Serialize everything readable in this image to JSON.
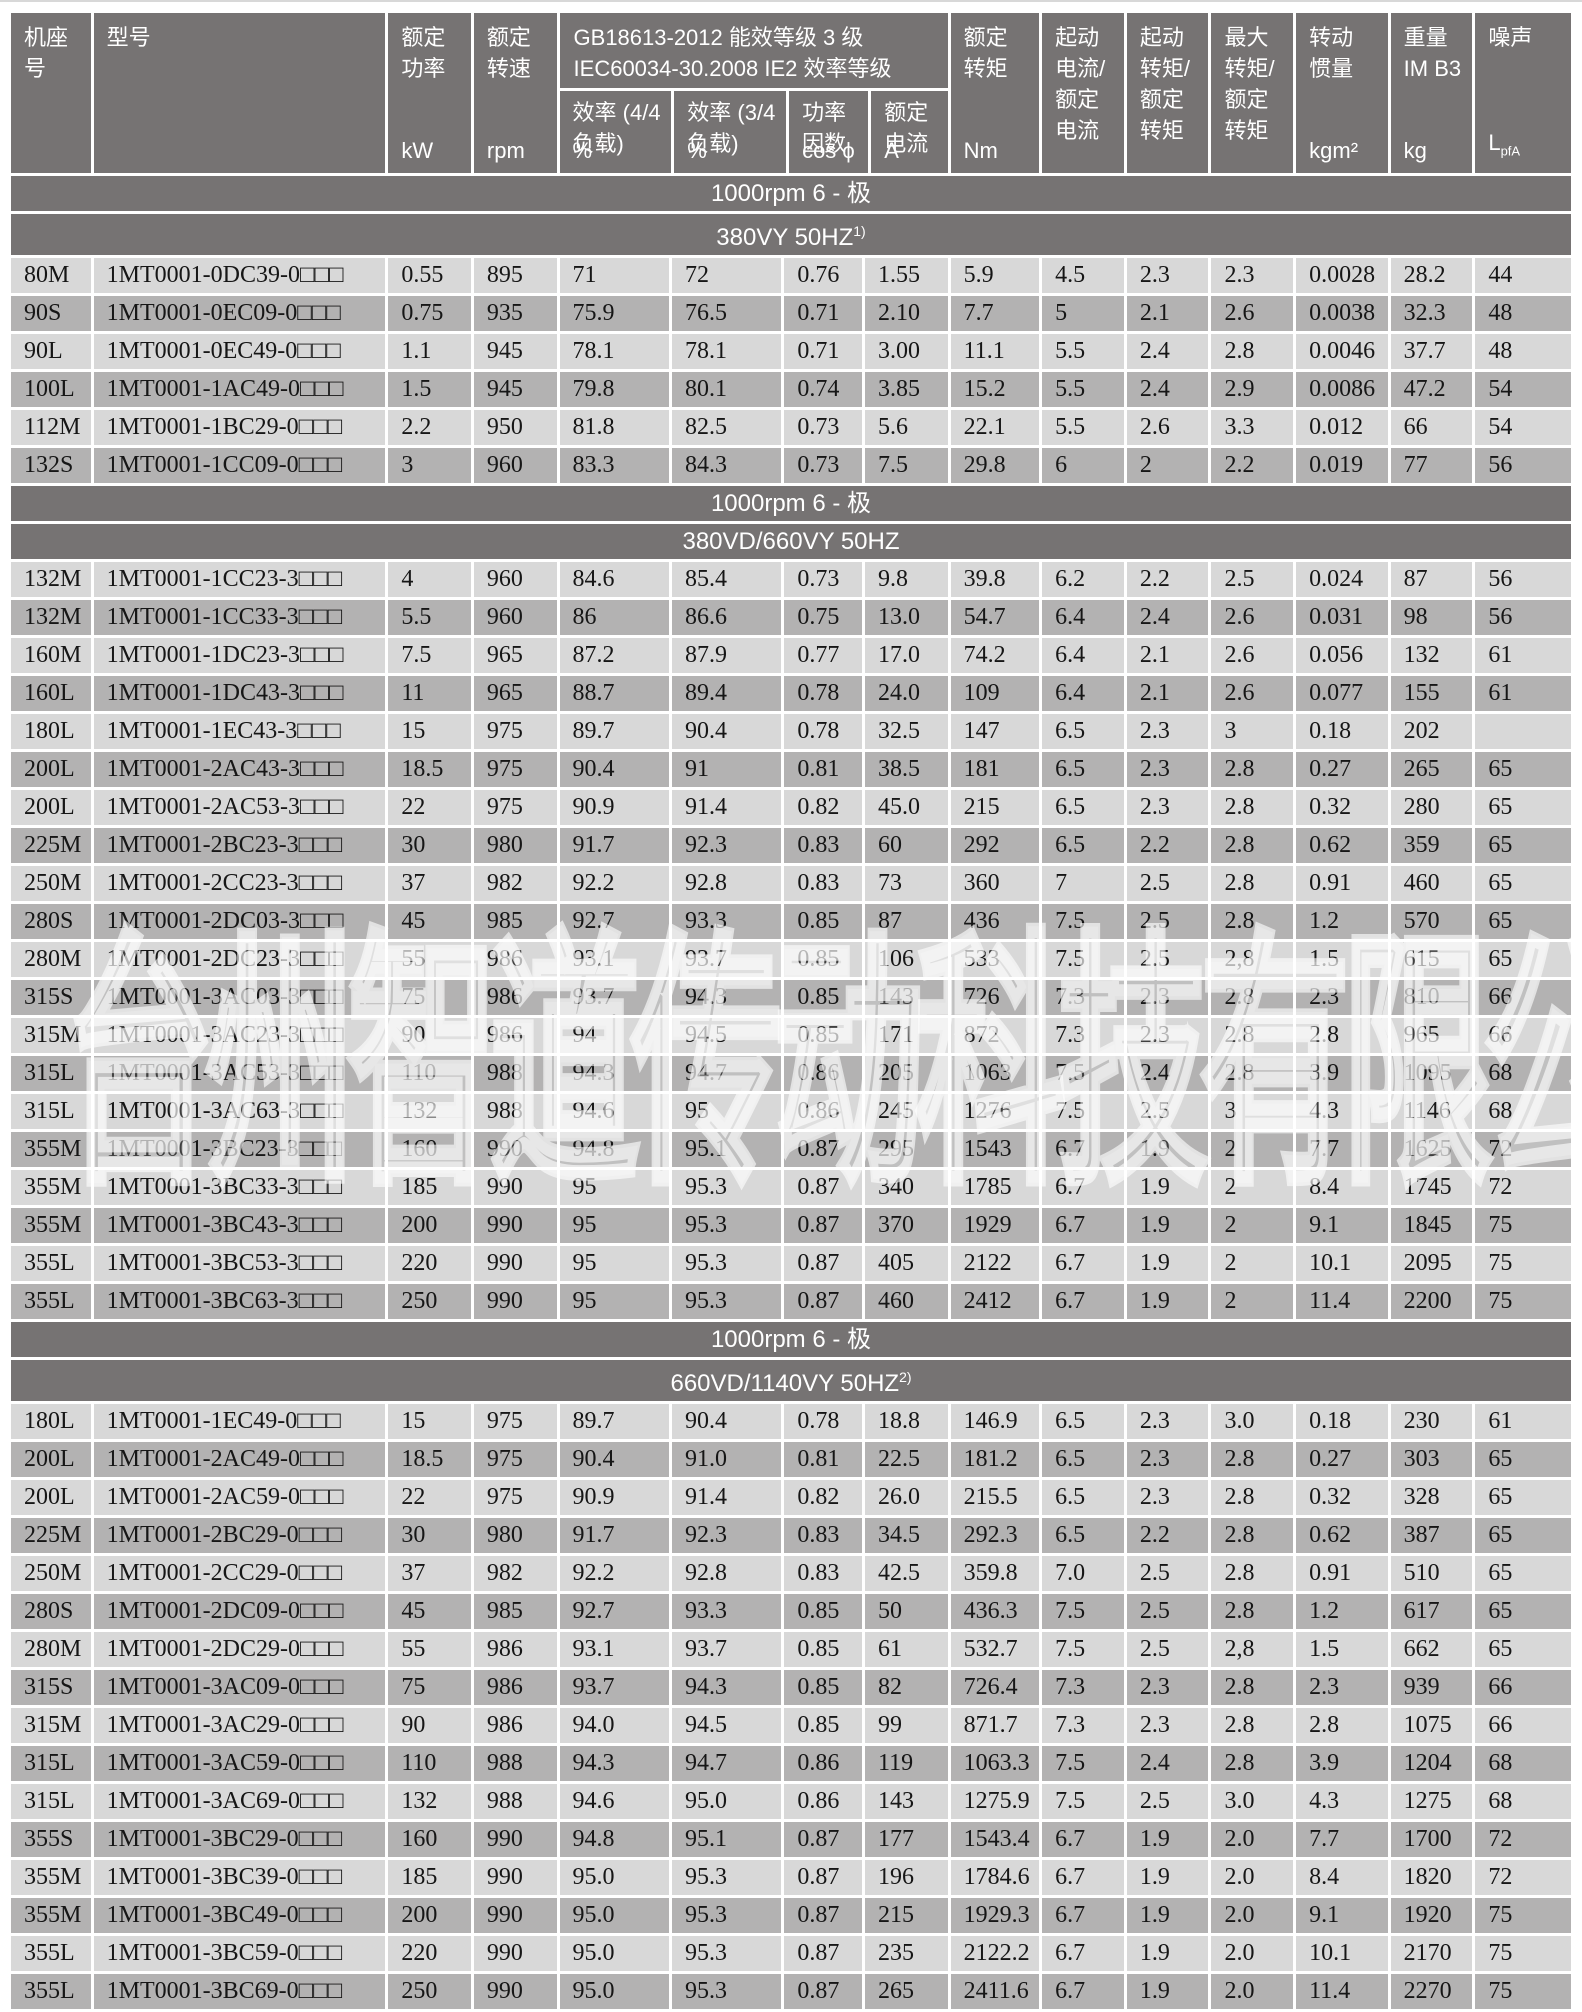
{
  "watermark": "台州智道传动科技有限公司",
  "header": {
    "frame": "机座号",
    "model": "型号",
    "power_l1": "额定",
    "power_l2": "功率",
    "power_unit": "kW",
    "speed_l1": "额定",
    "speed_l2": "转速",
    "speed_unit": "rpm",
    "group_l1": "GB18613-2012 能效等级 3 级",
    "group_l2": "IEC60034-30.2008 IE2 效率等级",
    "eff44_l1": "效率 (4/4",
    "eff44_l2": "负载)",
    "eff44_unit": "%",
    "eff34_l1": "效率 (3/4",
    "eff34_l2": "负载)",
    "eff34_unit": "%",
    "pf_l1": "功率",
    "pf_l2": "因数",
    "pf_unit": "cos ϕ",
    "current_l1": "额定",
    "current_l2": "电流",
    "current_unit": "A",
    "torque_l1": "额定",
    "torque_l2": "转矩",
    "torque_unit": "Nm",
    "istart_l1": "起动",
    "istart_l2": "电流/",
    "istart_l3": "额定",
    "istart_l4": "电流",
    "tstart_l1": "起动",
    "tstart_l2": "转矩/",
    "tstart_l3": "额定",
    "tstart_l4": "转矩",
    "tmax_l1": "最大",
    "tmax_l2": "转矩/",
    "tmax_l3": "额定",
    "tmax_l4": "转矩",
    "inertia_l1": "转动",
    "inertia_l2": "惯量",
    "inertia_unit": "kgm²",
    "weight_l1": "重量",
    "weight_l2": "IM B3",
    "weight_unit": "kg",
    "noise": "噪声",
    "noise_unit_main": "L",
    "noise_unit_sub": "pfA"
  },
  "colors": {
    "band": "#767373",
    "row_light": "#d8d8d8",
    "row_dark": "#b3b2b2",
    "header_text": "#ffffff",
    "data_text": "#161616"
  },
  "sections": [
    {
      "band1": "1000rpm  6 - 极",
      "band2": "380VY  50HZ",
      "band2_sup": "1)",
      "rows": [
        [
          "80M",
          "1MT0001-0DC39-0□□□",
          "0.55",
          "895",
          "71",
          "72",
          "0.76",
          "1.55",
          "5.9",
          "4.5",
          "2.3",
          "2.3",
          "0.0028",
          "28.2",
          "44"
        ],
        [
          "90S",
          "1MT0001-0EC09-0□□□",
          "0.75",
          "935",
          "75.9",
          "76.5",
          "0.71",
          "2.10",
          "7.7",
          "5",
          "2.1",
          "2.6",
          "0.0038",
          "32.3",
          "48"
        ],
        [
          "90L",
          "1MT0001-0EC49-0□□□",
          "1.1",
          "945",
          "78.1",
          "78.1",
          "0.71",
          "3.00",
          "11.1",
          "5.5",
          "2.4",
          "2.8",
          "0.0046",
          "37.7",
          "48"
        ],
        [
          "100L",
          "1MT0001-1AC49-0□□□",
          "1.5",
          "945",
          "79.8",
          "80.1",
          "0.74",
          "3.85",
          "15.2",
          "5.5",
          "2.4",
          "2.9",
          "0.0086",
          "47.2",
          "54"
        ],
        [
          "112M",
          "1MT0001-1BC29-0□□□",
          "2.2",
          "950",
          "81.8",
          "82.5",
          "0.73",
          "5.6",
          "22.1",
          "5.5",
          "2.6",
          "3.3",
          "0.012",
          "66",
          "54"
        ],
        [
          "132S",
          "1MT0001-1CC09-0□□□",
          "3",
          "960",
          "83.3",
          "84.3",
          "0.73",
          "7.5",
          "29.8",
          "6",
          "2",
          "2.2",
          "0.019",
          "77",
          "56"
        ]
      ]
    },
    {
      "band1": "1000rpm  6 - 极",
      "band2": "380VD/660VY  50HZ",
      "band2_sup": "",
      "rows": [
        [
          "132M",
          "1MT0001-1CC23-3□□□",
          "4",
          "960",
          "84.6",
          "85.4",
          "0.73",
          "9.8",
          "39.8",
          "6.2",
          "2.2",
          "2.5",
          "0.024",
          "87",
          "56"
        ],
        [
          "132M",
          "1MT0001-1CC33-3□□□",
          "5.5",
          "960",
          "86",
          "86.6",
          "0.75",
          "13.0",
          "54.7",
          "6.4",
          "2.4",
          "2.6",
          "0.031",
          "98",
          "56"
        ],
        [
          "160M",
          "1MT0001-1DC23-3□□□",
          "7.5",
          "965",
          "87.2",
          "87.9",
          "0.77",
          "17.0",
          "74.2",
          "6.4",
          "2.1",
          "2.6",
          "0.056",
          "132",
          "61"
        ],
        [
          "160L",
          "1MT0001-1DC43-3□□□",
          "11",
          "965",
          "88.7",
          "89.4",
          "0.78",
          "24.0",
          "109",
          "6.4",
          "2.1",
          "2.6",
          "0.077",
          "155",
          "61"
        ],
        [
          "180L",
          "1MT0001-1EC43-3□□□",
          "15",
          "975",
          "89.7",
          "90.4",
          "0.78",
          "32.5",
          "147",
          "6.5",
          "2.3",
          "3",
          "0.18",
          "202",
          ""
        ],
        [
          "200L",
          "1MT0001-2AC43-3□□□",
          "18.5",
          "975",
          "90.4",
          "91",
          "0.81",
          "38.5",
          "181",
          "6.5",
          "2.3",
          "2.8",
          "0.27",
          "265",
          "65"
        ],
        [
          "200L",
          "1MT0001-2AC53-3□□□",
          "22",
          "975",
          "90.9",
          "91.4",
          "0.82",
          "45.0",
          "215",
          "6.5",
          "2.3",
          "2.8",
          "0.32",
          "280",
          "65"
        ],
        [
          "225M",
          "1MT0001-2BC23-3□□□",
          "30",
          "980",
          "91.7",
          "92.3",
          "0.83",
          "60",
          "292",
          "6.5",
          "2.2",
          "2.8",
          "0.62",
          "359",
          "65"
        ],
        [
          "250M",
          "1MT0001-2CC23-3□□□",
          "37",
          "982",
          "92.2",
          "92.8",
          "0.83",
          "73",
          "360",
          "7",
          "2.5",
          "2.8",
          "0.91",
          "460",
          "65"
        ],
        [
          "280S",
          "1MT0001-2DC03-3□□□",
          "45",
          "985",
          "92.7",
          "93.3",
          "0.85",
          "87",
          "436",
          "7.5",
          "2.5",
          "2.8",
          "1.2",
          "570",
          "65"
        ],
        [
          "280M",
          "1MT0001-2DC23-3□□□",
          "55",
          "986",
          "93.1",
          "93.7",
          "0.85",
          "106",
          "533",
          "7.5",
          "2.5",
          "2,8",
          "1.5",
          "615",
          "65"
        ],
        [
          "315S",
          "1MT0001-3AC03-3□□□",
          "75",
          "986",
          "93.7",
          "94.3",
          "0.85",
          "143",
          "726",
          "7.3",
          "2.3",
          "2.8",
          "2.3",
          "810",
          "66"
        ],
        [
          "315M",
          "1MT0001-3AC23-3□□□",
          "90",
          "986",
          "94",
          "94.5",
          "0.85",
          "171",
          "872",
          "7.3",
          "2.3",
          "2.8",
          "2.8",
          "965",
          "66"
        ],
        [
          "315L",
          "1MT0001-3AC53-3□□□",
          "110",
          "988",
          "94.3",
          "94.7",
          "0.86",
          "205",
          "1063",
          "7.5",
          "2.4",
          "2.8",
          "3.9",
          "1095",
          "68"
        ],
        [
          "315L",
          "1MT0001-3AC63-3□□□",
          "132",
          "988",
          "94.6",
          "95",
          "0.86",
          "245",
          "1276",
          "7.5",
          "2.5",
          "3",
          "4.3",
          "1146",
          "68"
        ],
        [
          "355M",
          "1MT0001-3BC23-3□□□",
          "160",
          "990",
          "94.8",
          "95.1",
          "0.87",
          "295",
          "1543",
          "6.7",
          "1.9",
          "2",
          "7.7",
          "1625",
          "72"
        ],
        [
          "355M",
          "1MT0001-3BC33-3□□□",
          "185",
          "990",
          "95",
          "95.3",
          "0.87",
          "340",
          "1785",
          "6.7",
          "1.9",
          "2",
          "8.4",
          "1745",
          "72"
        ],
        [
          "355M",
          "1MT0001-3BC43-3□□□",
          "200",
          "990",
          "95",
          "95.3",
          "0.87",
          "370",
          "1929",
          "6.7",
          "1.9",
          "2",
          "9.1",
          "1845",
          "75"
        ],
        [
          "355L",
          "1MT0001-3BC53-3□□□",
          "220",
          "990",
          "95",
          "95.3",
          "0.87",
          "405",
          "2122",
          "6.7",
          "1.9",
          "2",
          "10.1",
          "2095",
          "75"
        ],
        [
          "355L",
          "1MT0001-3BC63-3□□□",
          "250",
          "990",
          "95",
          "95.3",
          "0.87",
          "460",
          "2412",
          "6.7",
          "1.9",
          "2",
          "11.4",
          "2200",
          "75"
        ]
      ]
    },
    {
      "band1": "1000rpm 6 - 极",
      "band2": "660VD/1140VY  50HZ",
      "band2_sup": "2)",
      "rows": [
        [
          "180L",
          "1MT0001-1EC49-0□□□",
          "15",
          "975",
          "89.7",
          "90.4",
          "0.78",
          "18.8",
          "146.9",
          "6.5",
          "2.3",
          "3.0",
          "0.18",
          "230",
          "61"
        ],
        [
          "200L",
          "1MT0001-2AC49-0□□□",
          "18.5",
          "975",
          "90.4",
          "91.0",
          "0.81",
          "22.5",
          "181.2",
          "6.5",
          "2.3",
          "2.8",
          "0.27",
          "303",
          "65"
        ],
        [
          "200L",
          "1MT0001-2AC59-0□□□",
          "22",
          "975",
          "90.9",
          "91.4",
          "0.82",
          "26.0",
          "215.5",
          "6.5",
          "2.3",
          "2.8",
          "0.32",
          "328",
          "65"
        ],
        [
          "225M",
          "1MT0001-2BC29-0□□□",
          "30",
          "980",
          "91.7",
          "92.3",
          "0.83",
          "34.5",
          "292.3",
          "6.5",
          "2.2",
          "2.8",
          "0.62",
          "387",
          "65"
        ],
        [
          "250M",
          "1MT0001-2CC29-0□□□",
          "37",
          "982",
          "92.2",
          "92.8",
          "0.83",
          "42.5",
          "359.8",
          "7.0",
          "2.5",
          "2.8",
          "0.91",
          "510",
          "65"
        ],
        [
          "280S",
          "1MT0001-2DC09-0□□□",
          "45",
          "985",
          "92.7",
          "93.3",
          "0.85",
          "50",
          "436.3",
          "7.5",
          "2.5",
          "2.8",
          "1.2",
          "617",
          "65"
        ],
        [
          "280M",
          "1MT0001-2DC29-0□□□",
          "55",
          "986",
          "93.1",
          "93.7",
          "0.85",
          "61",
          "532.7",
          "7.5",
          "2.5",
          "2,8",
          "1.5",
          "662",
          "65"
        ],
        [
          "315S",
          "1MT0001-3AC09-0□□□",
          "75",
          "986",
          "93.7",
          "94.3",
          "0.85",
          "82",
          "726.4",
          "7.3",
          "2.3",
          "2.8",
          "2.3",
          "939",
          "66"
        ],
        [
          "315M",
          "1MT0001-3AC29-0□□□",
          "90",
          "986",
          "94.0",
          "94.5",
          "0.85",
          "99",
          "871.7",
          "7.3",
          "2.3",
          "2.8",
          "2.8",
          "1075",
          "66"
        ],
        [
          "315L",
          "1MT0001-3AC59-0□□□",
          "110",
          "988",
          "94.3",
          "94.7",
          "0.86",
          "119",
          "1063.3",
          "7.5",
          "2.4",
          "2.8",
          "3.9",
          "1204",
          "68"
        ],
        [
          "315L",
          "1MT0001-3AC69-0□□□",
          "132",
          "988",
          "94.6",
          "95.0",
          "0.86",
          "143",
          "1275.9",
          "7.5",
          "2.5",
          "3.0",
          "4.3",
          "1275",
          "68"
        ],
        [
          "355S",
          "1MT0001-3BC29-0□□□",
          "160",
          "990",
          "94.8",
          "95.1",
          "0.87",
          "177",
          "1543.4",
          "6.7",
          "1.9",
          "2.0",
          "7.7",
          "1700",
          "72"
        ],
        [
          "355M",
          "1MT0001-3BC39-0□□□",
          "185",
          "990",
          "95.0",
          "95.3",
          "0.87",
          "196",
          "1784.6",
          "6.7",
          "1.9",
          "2.0",
          "8.4",
          "1820",
          "72"
        ],
        [
          "355M",
          "1MT0001-3BC49-0□□□",
          "200",
          "990",
          "95.0",
          "95.3",
          "0.87",
          "215",
          "1929.3",
          "6.7",
          "1.9",
          "2.0",
          "9.1",
          "1920",
          "75"
        ],
        [
          "355L",
          "1MT0001-3BC59-0□□□",
          "220",
          "990",
          "95.0",
          "95.3",
          "0.87",
          "235",
          "2122.2",
          "6.7",
          "1.9",
          "2.0",
          "10.1",
          "2170",
          "75"
        ],
        [
          "355L",
          "1MT0001-3BC69-0□□□",
          "250",
          "990",
          "95.0",
          "95.3",
          "0.87",
          "265",
          "2411.6",
          "6.7",
          "1.9",
          "2.0",
          "11.4",
          "2270",
          "75"
        ]
      ]
    }
  ]
}
